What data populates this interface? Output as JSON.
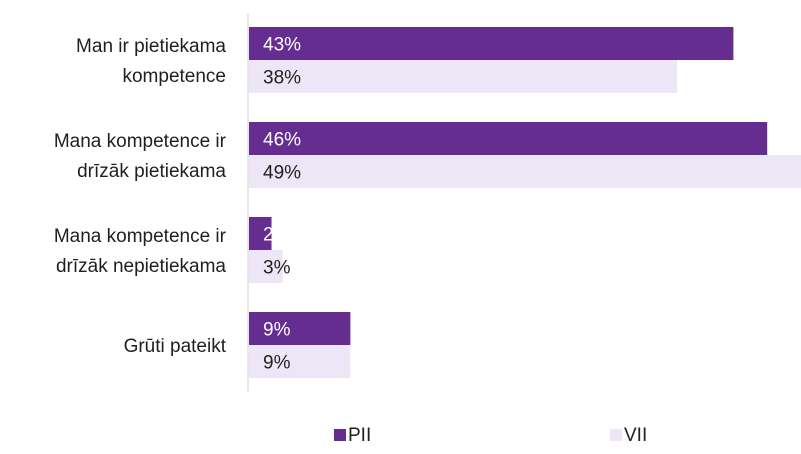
{
  "chart_data": {
    "type": "bar",
    "orientation": "horizontal",
    "categories": [
      [
        "Man ir pietiekama",
        "kompetence"
      ],
      [
        "Mana kompetence ir",
        "drīzāk pietiekama"
      ],
      [
        "Mana kompetence ir",
        "drīzāk nepietiekama"
      ],
      [
        "Grūti pateikt"
      ]
    ],
    "series": [
      {
        "name": "PII",
        "values": [
          43,
          46,
          2,
          9
        ],
        "labels": [
          "43%",
          "46%",
          "2%",
          "9%"
        ],
        "color": "#662d91",
        "label_color": "#ffffff"
      },
      {
        "name": "VII",
        "values": [
          38,
          49,
          3,
          9
        ],
        "labels": [
          "38%",
          "49%",
          "3%",
          "9%"
        ],
        "color": "#ece6f6",
        "label_color": "#1f1f1f"
      }
    ],
    "xlim": [
      0,
      49
    ],
    "grid": false,
    "legend_position": "bottom"
  }
}
